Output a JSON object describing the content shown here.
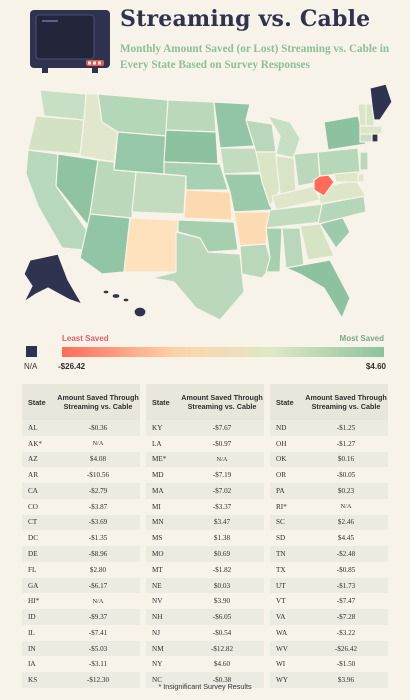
{
  "title": "Streaming vs. Cable",
  "subtitle": "Monthly Amount Saved (or Lost) Streaming vs. Cable in Every State Based on Survey Responses",
  "colors": {
    "navy": "#2f3350",
    "least": "#ff6b5b",
    "mid": "#e2e7c4",
    "most": "#8cc2a0",
    "background": "#f7f3e8"
  },
  "legend": {
    "na_label": "N/A",
    "least_label": "Least Saved",
    "most_label": "Most Saved",
    "min_value": "-$26.42",
    "max_value": "$4.60"
  },
  "table_headers": {
    "state": "State",
    "amount": "Amount Saved Through Streaming vs. Cable"
  },
  "columns": [
    [
      {
        "state": "AL",
        "value": "-$0.36"
      },
      {
        "state": "AK*",
        "value": "N/A"
      },
      {
        "state": "AZ",
        "value": "$4.08"
      },
      {
        "state": "AR",
        "value": "-$10.56"
      },
      {
        "state": "CA",
        "value": "-$2.79"
      },
      {
        "state": "CO",
        "value": "-$3.87"
      },
      {
        "state": "CT",
        "value": "-$3.69"
      },
      {
        "state": "DC",
        "value": "-$1.35"
      },
      {
        "state": "DE",
        "value": "-$8.96"
      },
      {
        "state": "FL",
        "value": "$2.80"
      },
      {
        "state": "GA",
        "value": "-$6.17"
      },
      {
        "state": "HI*",
        "value": "N/A"
      },
      {
        "state": "ID",
        "value": "-$9.37"
      },
      {
        "state": "IL",
        "value": "-$7.41"
      },
      {
        "state": "IN",
        "value": "-$5.03"
      },
      {
        "state": "IA",
        "value": "-$3.11"
      },
      {
        "state": "KS",
        "value": "-$12.30"
      }
    ],
    [
      {
        "state": "KY",
        "value": "-$7.67"
      },
      {
        "state": "LA",
        "value": "-$0.97"
      },
      {
        "state": "ME*",
        "value": "N/A"
      },
      {
        "state": "MD",
        "value": "-$7.19"
      },
      {
        "state": "MA",
        "value": "-$7.02"
      },
      {
        "state": "MI",
        "value": "-$3.37"
      },
      {
        "state": "MN",
        "value": "$3.47"
      },
      {
        "state": "MS",
        "value": "$1.38"
      },
      {
        "state": "MO",
        "value": "$0.69"
      },
      {
        "state": "MT",
        "value": "-$1.82"
      },
      {
        "state": "NE",
        "value": "$0.03"
      },
      {
        "state": "NV",
        "value": "$3.90"
      },
      {
        "state": "NH",
        "value": "-$6.05"
      },
      {
        "state": "NJ",
        "value": "-$0.54"
      },
      {
        "state": "NM",
        "value": "-$12.82"
      },
      {
        "state": "NY",
        "value": "$4.60"
      },
      {
        "state": "NC",
        "value": "-$0.38"
      }
    ],
    [
      {
        "state": "ND",
        "value": "-$1.25"
      },
      {
        "state": "OH",
        "value": "-$1.27"
      },
      {
        "state": "OK",
        "value": "$0.16"
      },
      {
        "state": "OR",
        "value": "-$0.05"
      },
      {
        "state": "PA",
        "value": "$0.23"
      },
      {
        "state": "RI*",
        "value": "N/A"
      },
      {
        "state": "SC",
        "value": "$2.46"
      },
      {
        "state": "SD",
        "value": "$4.45"
      },
      {
        "state": "TN",
        "value": "-$2.48"
      },
      {
        "state": "TX",
        "value": "-$0.85"
      },
      {
        "state": "UT",
        "value": "-$1.73"
      },
      {
        "state": "VT",
        "value": "-$7.47"
      },
      {
        "state": "VA",
        "value": "-$7.28"
      },
      {
        "state": "WA",
        "value": "-$3.22"
      },
      {
        "state": "WV",
        "value": "-$26.42"
      },
      {
        "state": "WI",
        "value": "-$1.50"
      },
      {
        "state": "WY",
        "value": "$3.96"
      }
    ]
  ],
  "footnote": "* Insignificant Survey Results"
}
